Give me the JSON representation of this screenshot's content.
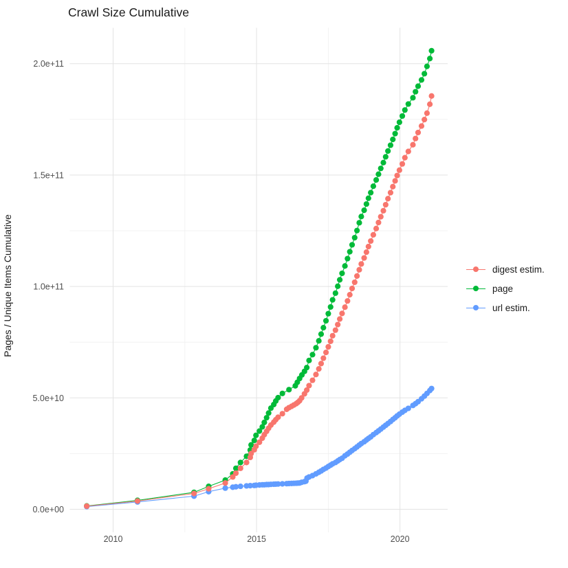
{
  "title": "Crawl Size Cumulative",
  "chart_data": {
    "type": "scatter",
    "title": "Crawl Size Cumulative",
    "xlabel": "",
    "ylabel": "Pages / Unique Items Cumulative",
    "x_unit": "year",
    "y_unit": "pages / unique items (billions)",
    "xlim": [
      2008.55,
      2021.73
    ],
    "ylim_billions": [
      0,
      226
    ],
    "grid": true,
    "legend_position": "right",
    "x_major_ticks": [
      2010,
      2015,
      2020
    ],
    "x_tick_labels": [
      "2010",
      "2015",
      "2020"
    ],
    "x_minor_ticks": [
      2012.5,
      2017.5
    ],
    "y_major_ticks_billions": [
      0,
      50,
      100,
      150,
      200
    ],
    "y_tick_labels": [
      "0.0e+00",
      "5.0e+10",
      "1.0e+11",
      "1.5e+11",
      "2.0e+11"
    ],
    "y_minor_ticks_billions": [
      25,
      75,
      125,
      175
    ],
    "draw_order": [
      1,
      2,
      0
    ],
    "series": [
      {
        "name": "digest estim.",
        "color": "#F8766D",
        "points": [
          [
            2009.08,
            1.4
          ],
          [
            2010.85,
            3.7
          ],
          [
            2012.82,
            7.1
          ],
          [
            2013.33,
            9.2
          ],
          [
            2013.91,
            11.8
          ],
          [
            2014.17,
            14.5
          ],
          [
            2014.28,
            16.2
          ],
          [
            2014.44,
            18.4
          ],
          [
            2014.65,
            21.0
          ],
          [
            2014.78,
            23.3
          ],
          [
            2014.81,
            25.0
          ],
          [
            2014.92,
            26.7
          ],
          [
            2014.98,
            28.3
          ],
          [
            2015.1,
            30.1
          ],
          [
            2015.2,
            31.9
          ],
          [
            2015.27,
            33.5
          ],
          [
            2015.35,
            35.0
          ],
          [
            2015.42,
            36.4
          ],
          [
            2015.5,
            37.8
          ],
          [
            2015.6,
            39.1
          ],
          [
            2015.67,
            40.2
          ],
          [
            2015.75,
            41.3
          ],
          [
            2015.9,
            42.9
          ],
          [
            2016.05,
            44.9
          ],
          [
            2016.13,
            45.6
          ],
          [
            2016.22,
            46.2
          ],
          [
            2016.3,
            46.8
          ],
          [
            2016.38,
            47.4
          ],
          [
            2016.44,
            48.0
          ],
          [
            2016.5,
            48.7
          ],
          [
            2016.57,
            50.0
          ],
          [
            2016.67,
            51.8
          ],
          [
            2016.75,
            53.5
          ],
          [
            2016.83,
            55.5
          ],
          [
            2016.95,
            57.9
          ],
          [
            2017.07,
            60.5
          ],
          [
            2017.17,
            63.0
          ],
          [
            2017.25,
            65.4
          ],
          [
            2017.33,
            67.8
          ],
          [
            2017.42,
            70.4
          ],
          [
            2017.5,
            72.9
          ],
          [
            2017.58,
            75.4
          ],
          [
            2017.65,
            77.9
          ],
          [
            2017.75,
            80.4
          ],
          [
            2017.83,
            82.9
          ],
          [
            2017.9,
            85.4
          ],
          [
            2017.98,
            87.9
          ],
          [
            2018.08,
            90.7
          ],
          [
            2018.17,
            93.5
          ],
          [
            2018.25,
            96.3
          ],
          [
            2018.33,
            99.1
          ],
          [
            2018.42,
            101.9
          ],
          [
            2018.5,
            104.7
          ],
          [
            2018.58,
            107.5
          ],
          [
            2018.65,
            110.1
          ],
          [
            2018.75,
            112.8
          ],
          [
            2018.83,
            115.4
          ],
          [
            2018.9,
            117.9
          ],
          [
            2018.98,
            120.4
          ],
          [
            2019.07,
            123.2
          ],
          [
            2019.17,
            126.0
          ],
          [
            2019.25,
            128.7
          ],
          [
            2019.33,
            131.3
          ],
          [
            2019.42,
            134.0
          ],
          [
            2019.5,
            136.7
          ],
          [
            2019.58,
            139.4
          ],
          [
            2019.67,
            142.1
          ],
          [
            2019.75,
            144.8
          ],
          [
            2019.83,
            147.4
          ],
          [
            2019.9,
            149.8
          ],
          [
            2019.98,
            152.2
          ],
          [
            2020.08,
            155.0
          ],
          [
            2020.17,
            157.8
          ],
          [
            2020.29,
            160.6
          ],
          [
            2020.45,
            163.6
          ],
          [
            2020.54,
            166.4
          ],
          [
            2020.63,
            169.1
          ],
          [
            2020.75,
            172.0
          ],
          [
            2020.85,
            174.9
          ],
          [
            2020.94,
            177.8
          ],
          [
            2021.04,
            181.8
          ],
          [
            2021.1,
            185.5
          ]
        ]
      },
      {
        "name": "page",
        "color": "#00BA38",
        "points": [
          [
            2009.08,
            1.5
          ],
          [
            2010.85,
            4.0
          ],
          [
            2012.82,
            7.6
          ],
          [
            2013.33,
            10.3
          ],
          [
            2013.91,
            13.1
          ],
          [
            2014.17,
            15.9
          ],
          [
            2014.28,
            18.4
          ],
          [
            2014.44,
            21.0
          ],
          [
            2014.65,
            23.8
          ],
          [
            2014.78,
            26.6
          ],
          [
            2014.81,
            28.9
          ],
          [
            2014.92,
            30.9
          ],
          [
            2014.98,
            33.2
          ],
          [
            2015.1,
            35.1
          ],
          [
            2015.2,
            37.0
          ],
          [
            2015.27,
            39.0
          ],
          [
            2015.35,
            41.1
          ],
          [
            2015.42,
            43.2
          ],
          [
            2015.5,
            45.4
          ],
          [
            2015.6,
            47.0
          ],
          [
            2015.67,
            48.6
          ],
          [
            2015.75,
            50.1
          ],
          [
            2015.9,
            52.0
          ],
          [
            2016.13,
            53.7
          ],
          [
            2016.35,
            55.4
          ],
          [
            2016.42,
            57.0
          ],
          [
            2016.5,
            58.7
          ],
          [
            2016.58,
            60.3
          ],
          [
            2016.67,
            61.9
          ],
          [
            2016.75,
            63.6
          ],
          [
            2016.83,
            66.8
          ],
          [
            2016.95,
            69.4
          ],
          [
            2017.07,
            72.5
          ],
          [
            2017.17,
            75.6
          ],
          [
            2017.25,
            78.6
          ],
          [
            2017.33,
            81.5
          ],
          [
            2017.42,
            84.6
          ],
          [
            2017.5,
            87.8
          ],
          [
            2017.58,
            90.8
          ],
          [
            2017.65,
            94.0
          ],
          [
            2017.75,
            97.0
          ],
          [
            2017.83,
            100.1
          ],
          [
            2017.9,
            103.0
          ],
          [
            2017.98,
            105.9
          ],
          [
            2018.08,
            109.2
          ],
          [
            2018.17,
            112.5
          ],
          [
            2018.25,
            115.6
          ],
          [
            2018.33,
            118.7
          ],
          [
            2018.42,
            121.9
          ],
          [
            2018.5,
            125.1
          ],
          [
            2018.58,
            128.6
          ],
          [
            2018.65,
            131.4
          ],
          [
            2018.75,
            134.2
          ],
          [
            2018.83,
            137.0
          ],
          [
            2018.9,
            139.6
          ],
          [
            2018.98,
            142.1
          ],
          [
            2019.07,
            145.0
          ],
          [
            2019.17,
            147.8
          ],
          [
            2019.25,
            150.4
          ],
          [
            2019.33,
            153.0
          ],
          [
            2019.42,
            155.6
          ],
          [
            2019.5,
            158.2
          ],
          [
            2019.58,
            160.8
          ],
          [
            2019.67,
            163.4
          ],
          [
            2019.75,
            166.0
          ],
          [
            2019.83,
            168.6
          ],
          [
            2019.9,
            171.2
          ],
          [
            2019.98,
            173.7
          ],
          [
            2020.08,
            176.5
          ],
          [
            2020.17,
            179.2
          ],
          [
            2020.29,
            181.9
          ],
          [
            2020.45,
            184.7
          ],
          [
            2020.54,
            187.4
          ],
          [
            2020.63,
            189.9
          ],
          [
            2020.75,
            192.7
          ],
          [
            2020.85,
            195.5
          ],
          [
            2020.94,
            198.8
          ],
          [
            2021.04,
            202.3
          ],
          [
            2021.1,
            205.8
          ]
        ]
      },
      {
        "name": "url estim.",
        "color": "#619CFF",
        "points": [
          [
            2009.08,
            1.2
          ],
          [
            2010.85,
            3.3
          ],
          [
            2012.82,
            5.9
          ],
          [
            2013.33,
            7.9
          ],
          [
            2013.91,
            9.5
          ],
          [
            2014.17,
            9.9
          ],
          [
            2014.28,
            10.1
          ],
          [
            2014.44,
            10.3
          ],
          [
            2014.65,
            10.5
          ],
          [
            2014.78,
            10.6
          ],
          [
            2014.92,
            10.7
          ],
          [
            2014.98,
            10.8
          ],
          [
            2015.1,
            10.9
          ],
          [
            2015.2,
            11.0
          ],
          [
            2015.27,
            11.0
          ],
          [
            2015.35,
            11.1
          ],
          [
            2015.42,
            11.1
          ],
          [
            2015.5,
            11.2
          ],
          [
            2015.6,
            11.25
          ],
          [
            2015.67,
            11.3
          ],
          [
            2015.75,
            11.35
          ],
          [
            2015.9,
            11.4
          ],
          [
            2016.05,
            11.5
          ],
          [
            2016.13,
            11.55
          ],
          [
            2016.22,
            11.6
          ],
          [
            2016.3,
            11.65
          ],
          [
            2016.38,
            11.7
          ],
          [
            2016.44,
            11.75
          ],
          [
            2016.5,
            11.8
          ],
          [
            2016.57,
            12.1
          ],
          [
            2016.67,
            12.4
          ],
          [
            2016.72,
            12.6
          ],
          [
            2016.76,
            14.0
          ],
          [
            2016.83,
            14.5
          ],
          [
            2016.95,
            15.1
          ],
          [
            2017.07,
            15.9
          ],
          [
            2017.17,
            16.6
          ],
          [
            2017.25,
            17.2
          ],
          [
            2017.33,
            17.9
          ],
          [
            2017.42,
            18.5
          ],
          [
            2017.5,
            19.2
          ],
          [
            2017.58,
            19.8
          ],
          [
            2017.65,
            20.4
          ],
          [
            2017.75,
            21.0
          ],
          [
            2017.83,
            21.7
          ],
          [
            2017.9,
            22.3
          ],
          [
            2017.98,
            22.9
          ],
          [
            2018.08,
            24.0
          ],
          [
            2018.17,
            24.8
          ],
          [
            2018.25,
            25.6
          ],
          [
            2018.33,
            26.4
          ],
          [
            2018.42,
            27.2
          ],
          [
            2018.5,
            28.0
          ],
          [
            2018.58,
            28.8
          ],
          [
            2018.65,
            29.5
          ],
          [
            2018.75,
            30.3
          ],
          [
            2018.83,
            31.1
          ],
          [
            2018.9,
            31.8
          ],
          [
            2018.98,
            32.5
          ],
          [
            2019.07,
            33.5
          ],
          [
            2019.17,
            34.4
          ],
          [
            2019.25,
            35.2
          ],
          [
            2019.33,
            36.0
          ],
          [
            2019.42,
            36.9
          ],
          [
            2019.5,
            37.7
          ],
          [
            2019.58,
            38.5
          ],
          [
            2019.67,
            39.4
          ],
          [
            2019.75,
            40.3
          ],
          [
            2019.83,
            41.1
          ],
          [
            2019.9,
            41.9
          ],
          [
            2019.98,
            42.7
          ],
          [
            2020.08,
            43.6
          ],
          [
            2020.17,
            44.4
          ],
          [
            2020.29,
            45.3
          ],
          [
            2020.45,
            46.6
          ],
          [
            2020.54,
            47.4
          ],
          [
            2020.63,
            48.3
          ],
          [
            2020.75,
            49.6
          ],
          [
            2020.85,
            50.8
          ],
          [
            2020.94,
            52.0
          ],
          [
            2021.04,
            53.3
          ],
          [
            2021.1,
            54.2
          ]
        ]
      }
    ]
  },
  "colors": {
    "grid_major": "#e3e3e3",
    "grid_minor": "#efefef",
    "axis_text": "#4d4d4d",
    "title_text": "#1a1a1a"
  }
}
